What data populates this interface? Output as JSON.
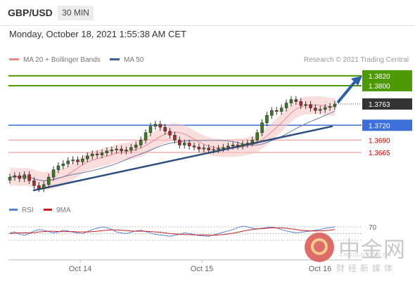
{
  "header": {
    "symbol": "GBP/USD",
    "timeframe": "30 MIN"
  },
  "date_text": "Monday, October 18, 2021 1:55:38 AM CET",
  "legend": {
    "ma20": "MA 20 + Bollinger Bands",
    "ma50": "MA 50",
    "ma20_color": "#e88a8a",
    "ma50_color": "#3a5f95"
  },
  "credit": "Research © 2021 Trading Central",
  "sub_legend": {
    "rsi": "RSI",
    "ma9": "9MA",
    "rsi_color": "#5a7fd8",
    "ma9_color": "#c82020"
  },
  "watermark": {
    "title": "中金网",
    "url": "CNGOLD.COM.CN",
    "sub": "财经新媒体"
  },
  "chart_data": [
    {
      "type": "line",
      "title": "GBP/USD 30 MIN",
      "x_ticks": [
        "Oct 14",
        "Oct 15",
        "Oct 16"
      ],
      "price_levels": [
        {
          "label": "1.3820",
          "value": 1.382,
          "kind": "resistance",
          "color": "#4e9a06"
        },
        {
          "label": "1.3800",
          "value": 1.38,
          "kind": "resistance",
          "color": "#4e9a06"
        },
        {
          "label": "1.3763",
          "value": 1.3763,
          "kind": "last",
          "color": "#333333"
        },
        {
          "label": "1.3720",
          "value": 1.372,
          "kind": "pivot",
          "color": "#3d6fd8"
        },
        {
          "label": "1.3690",
          "value": 1.369,
          "kind": "support",
          "color": "#c00000"
        },
        {
          "label": "1.3665",
          "value": 1.3665,
          "kind": "support",
          "color": "#c00000"
        }
      ],
      "close_series": [
        1.3615,
        1.3618,
        1.3612,
        1.362,
        1.3608,
        1.3598,
        1.3592,
        1.36,
        1.3615,
        1.363,
        1.3638,
        1.3642,
        1.3648,
        1.365,
        1.3646,
        1.3652,
        1.3658,
        1.3662,
        1.366,
        1.3664,
        1.3668,
        1.367,
        1.3672,
        1.3668,
        1.367,
        1.3675,
        1.368,
        1.369,
        1.3705,
        1.3718,
        1.3722,
        1.3716,
        1.3708,
        1.37,
        1.369,
        1.368,
        1.3684,
        1.3678,
        1.3676,
        1.3672,
        1.3674,
        1.367,
        1.3671,
        1.3673,
        1.3675,
        1.3678,
        1.368,
        1.3678,
        1.3682,
        1.3684,
        1.369,
        1.3705,
        1.3725,
        1.374,
        1.375,
        1.3748,
        1.3755,
        1.3765,
        1.3772,
        1.3768,
        1.376,
        1.3762,
        1.3755,
        1.375,
        1.3752,
        1.3756,
        1.3758,
        1.3763
      ],
      "trendline": {
        "from": 1.3588,
        "to": 1.3718
      },
      "forecast_target": 1.382
    },
    {
      "type": "line",
      "name": "RSI",
      "levels": [
        70,
        50,
        30
      ],
      "level_labels": [
        "70"
      ],
      "rsi": [
        52,
        55,
        48,
        45,
        50,
        58,
        62,
        60,
        56,
        52,
        55,
        60,
        58,
        54,
        52,
        50,
        56,
        62,
        66,
        70,
        68,
        62,
        55,
        52,
        50,
        54,
        58,
        60,
        56,
        52,
        48,
        46,
        44,
        42,
        45,
        48,
        52,
        50,
        47,
        44,
        43,
        42,
        46,
        50,
        54,
        58,
        62,
        68,
        72,
        70,
        66,
        64,
        66,
        68,
        70,
        67,
        62,
        58,
        55,
        52,
        54,
        56,
        58,
        60,
        62,
        66,
        68,
        70
      ],
      "ma9": [
        50,
        51,
        52,
        52,
        52,
        53,
        55,
        56,
        57,
        57,
        56,
        56,
        56,
        56,
        55,
        55,
        55,
        56,
        57,
        59,
        60,
        61,
        61,
        60,
        59,
        58,
        57,
        57,
        57,
        56,
        55,
        54,
        52,
        50,
        49,
        48,
        47,
        47,
        46,
        46,
        46,
        45,
        45,
        46,
        47,
        49,
        51,
        54,
        57,
        60,
        62,
        64,
        65,
        66,
        67,
        67,
        67,
        66,
        64,
        62,
        60,
        59,
        58,
        58,
        58,
        59,
        60,
        62
      ]
    }
  ]
}
